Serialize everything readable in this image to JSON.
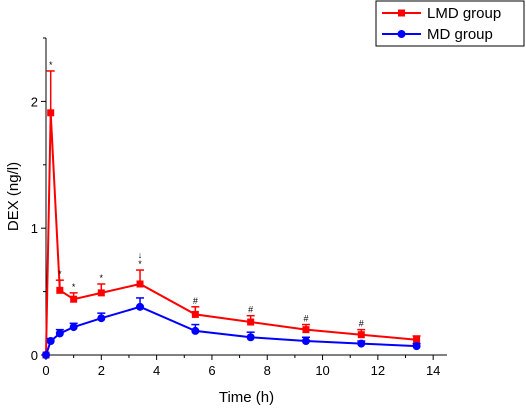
{
  "chart_data": {
    "type": "line",
    "title": "",
    "xlabel": "Time (h)",
    "ylabel": "DEX (ng/l)",
    "xlim": [
      0,
      14.5
    ],
    "ylim": [
      0,
      2.5
    ],
    "xticks": [
      0,
      2,
      4,
      6,
      8,
      10,
      12,
      14
    ],
    "yticks": [
      0,
      1,
      2
    ],
    "x_tick_labels": [
      "0",
      "2",
      "4",
      "6",
      "8",
      "10",
      "12",
      "14"
    ],
    "y_tick_labels": [
      "0",
      "1",
      "2"
    ],
    "grid": false,
    "legend_position": "top-right",
    "series": [
      {
        "name": "LMD group",
        "color": "#ff0000",
        "marker": "square",
        "x": [
          0,
          0.17,
          0.5,
          1,
          2,
          3.4,
          5.4,
          7.4,
          9.4,
          11.4,
          13.4
        ],
        "y": [
          0.0,
          1.91,
          0.51,
          0.44,
          0.49,
          0.56,
          0.32,
          0.26,
          0.2,
          0.16,
          0.12
        ],
        "error": [
          0.0,
          0.33,
          0.08,
          0.05,
          0.07,
          0.11,
          0.06,
          0.05,
          0.04,
          0.04,
          0.03
        ]
      },
      {
        "name": "MD group",
        "color": "#0000ff",
        "marker": "circle",
        "x": [
          0,
          0.17,
          0.5,
          1,
          2,
          3.4,
          5.4,
          7.4,
          9.4,
          11.4,
          13.4
        ],
        "y": [
          0.0,
          0.11,
          0.17,
          0.22,
          0.29,
          0.38,
          0.19,
          0.14,
          0.11,
          0.09,
          0.07
        ],
        "error": [
          0.0,
          0.02,
          0.03,
          0.03,
          0.04,
          0.07,
          0.05,
          0.04,
          0.03,
          0.02,
          0.02
        ]
      }
    ],
    "annotations": [
      {
        "x": 0.17,
        "text": "*"
      },
      {
        "x": 0.5,
        "text": "*"
      },
      {
        "x": 1,
        "text": "*"
      },
      {
        "x": 2,
        "text": "*"
      },
      {
        "x": 3.4,
        "text": "↓"
      },
      {
        "x": 3.4,
        "text": "*"
      },
      {
        "x": 5.4,
        "text": "#"
      },
      {
        "x": 7.4,
        "text": "#"
      },
      {
        "x": 9.4,
        "text": "#"
      },
      {
        "x": 11.4,
        "text": "#"
      }
    ]
  }
}
